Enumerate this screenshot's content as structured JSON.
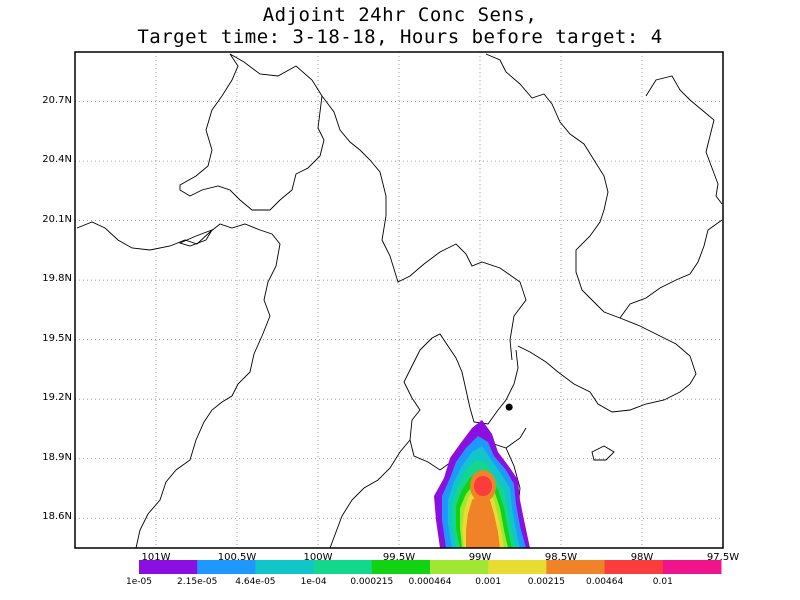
{
  "title": {
    "line1": "Adjoint 24hr Conc Sens,",
    "line2": "Target time: 3-18-18, Hours before target: 4"
  },
  "map": {
    "lat_ticks": [
      "20.7N",
      "20.4N",
      "20.1N",
      "19.8N",
      "19.5N",
      "19.2N",
      "18.9N",
      "18.6N"
    ],
    "lon_ticks": [
      "101W",
      "100.5W",
      "100W",
      "99.5W",
      "99W",
      "98.5W",
      "98W",
      "97.5W"
    ],
    "lon_range": [
      101.5,
      97.5
    ],
    "lat_range": [
      18.45,
      20.95
    ],
    "gridlines": true,
    "target_marker": {
      "lon": 98.82,
      "lat": 19.16,
      "color": "#000000"
    }
  },
  "colorbar": {
    "colors": [
      "#8a0fe0",
      "#1e98ff",
      "#12c5c8",
      "#12d78c",
      "#11d311",
      "#a0e632",
      "#e6dc32",
      "#f08228",
      "#fa3c3c",
      "#f0148c"
    ],
    "labels": [
      "1e-05",
      "2.15e-05",
      "4.64e-05",
      "1e-04",
      "0.000215",
      "0.000464",
      "0.001",
      "0.00215",
      "0.00464",
      "0.01"
    ]
  }
}
